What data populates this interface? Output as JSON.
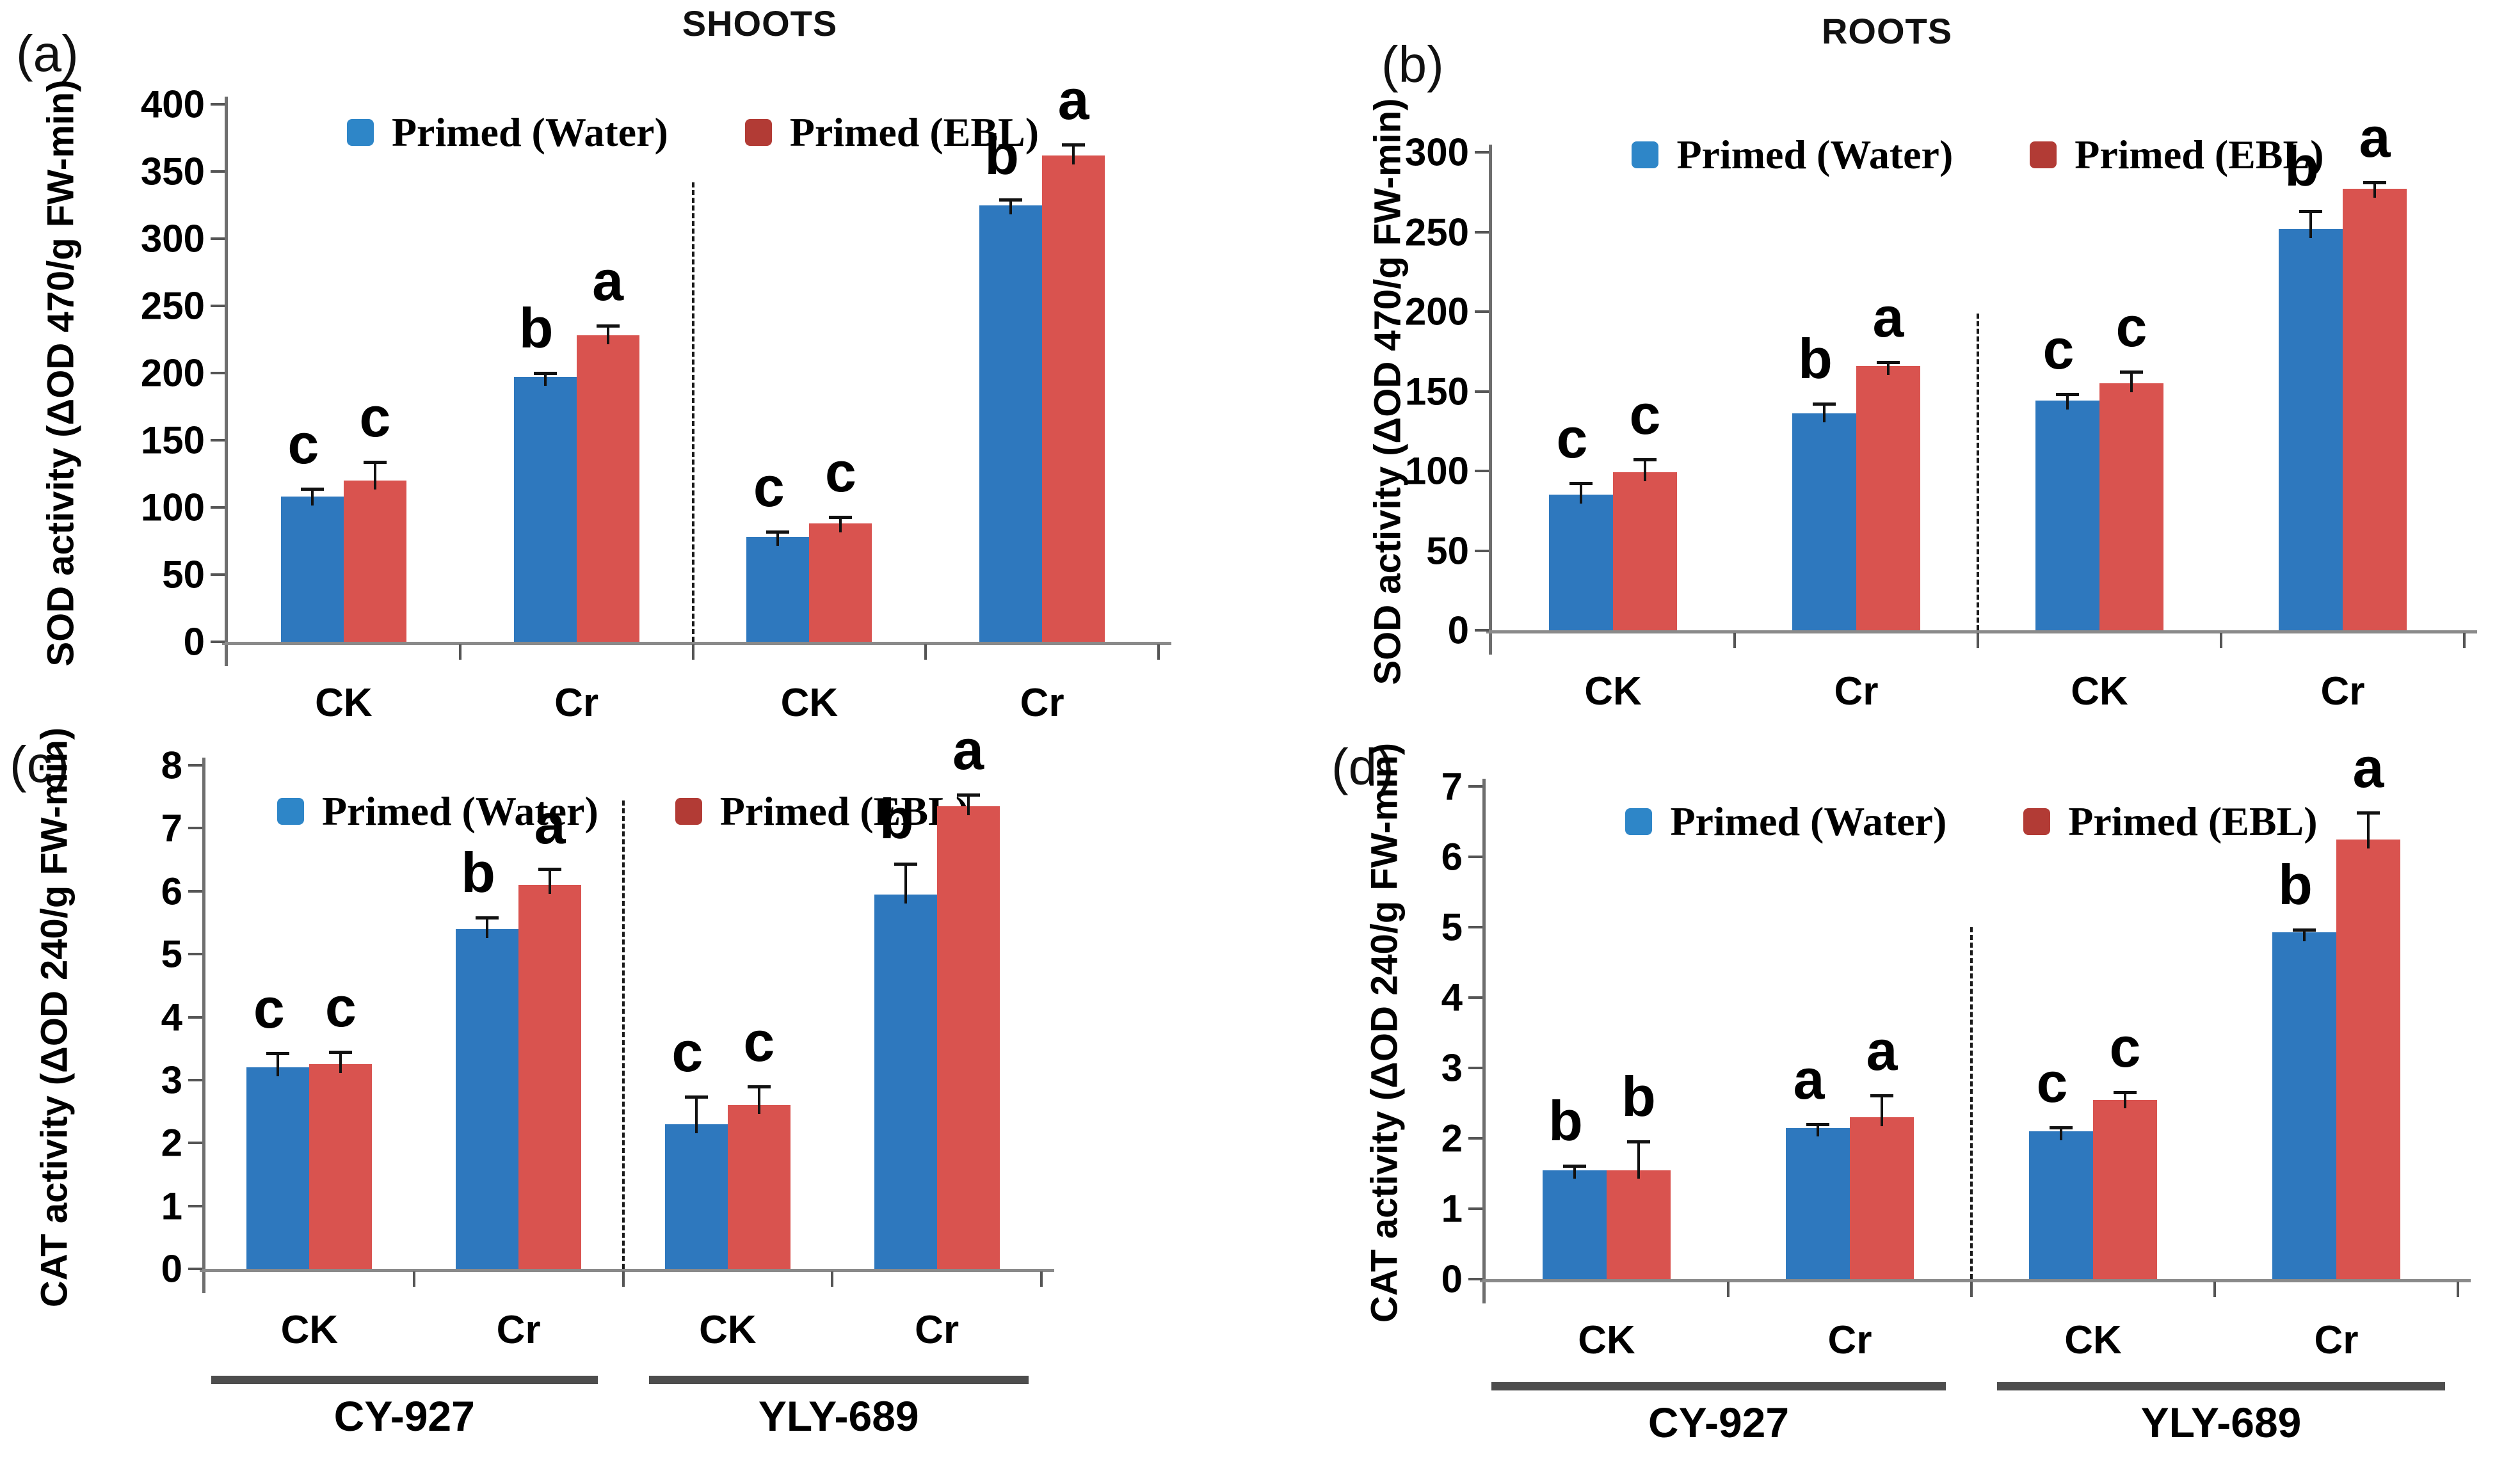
{
  "legend": {
    "water_label": "Primed (Water)",
    "ebl_label": "Primed (EBL)"
  },
  "colors": {
    "water_bar": "#2E78BE",
    "ebl_bar": "#D9534F",
    "water_swatch": "#2E86C8",
    "ebl_swatch": "#B23B35",
    "axis": "#6e6e6e",
    "cultivar_bar": "#4d4d4d"
  },
  "chart_data": [
    {
      "id": "a",
      "panel_letter": "(a)",
      "column_title": "SHOOTS",
      "type": "bar",
      "ylabel": "SOD activity (ΔOD 470/g FW-min)",
      "ylim": [
        0,
        400
      ],
      "ystep": 50,
      "grid": false,
      "legend_position": "top-center",
      "categories": [
        "CK",
        "Cr",
        "CK",
        "Cr"
      ],
      "cultivars": [
        "CY-927",
        "YLY-689"
      ],
      "show_cultivar_labels": false,
      "series": [
        {
          "name": "Primed (Water)",
          "values": [
            108,
            197,
            78,
            325
          ],
          "errors": [
            7,
            4,
            5,
            5
          ],
          "letters": [
            "c",
            "b",
            "c",
            "b"
          ]
        },
        {
          "name": "Primed (EBL)",
          "values": [
            120,
            228,
            88,
            362
          ],
          "errors": [
            15,
            8,
            6,
            9
          ],
          "letters": [
            "c",
            "a",
            "c",
            "a"
          ]
        }
      ]
    },
    {
      "id": "b",
      "panel_letter": "(b)",
      "column_title": "ROOTS",
      "type": "bar",
      "ylabel": "SOD activity (ΔOD 470/g FW-min)",
      "ylim": [
        0,
        300
      ],
      "ystep": 50,
      "grid": false,
      "legend_position": "top-center",
      "categories": [
        "CK",
        "Cr",
        "CK",
        "Cr"
      ],
      "cultivars": [
        "CY-927",
        "YLY-689"
      ],
      "show_cultivar_labels": false,
      "series": [
        {
          "name": "Primed (Water)",
          "values": [
            85,
            136,
            144,
            252
          ],
          "errors": [
            8,
            7,
            5,
            12
          ],
          "letters": [
            "c",
            "b",
            "c",
            "b"
          ]
        },
        {
          "name": "Primed (EBL)",
          "values": [
            99,
            166,
            155,
            277
          ],
          "errors": [
            9,
            3,
            8,
            5
          ],
          "letters": [
            "c",
            "a",
            "c",
            "a"
          ]
        }
      ]
    },
    {
      "id": "c",
      "panel_letter": "(c)",
      "column_title": "",
      "type": "bar",
      "ylabel": "CAT activity (ΔOD 240/g FW-min)",
      "ylim": [
        0,
        8
      ],
      "ystep": 1,
      "grid": false,
      "legend_position": "top-center",
      "categories": [
        "CK",
        "Cr",
        "CK",
        "Cr"
      ],
      "cultivars": [
        "CY-927",
        "YLY-689"
      ],
      "show_cultivar_labels": true,
      "series": [
        {
          "name": "Primed (Water)",
          "values": [
            3.2,
            5.4,
            2.3,
            5.95
          ],
          "errors": [
            0.25,
            0.2,
            0.45,
            0.5
          ],
          "letters": [
            "c",
            "b",
            "c",
            "b"
          ]
        },
        {
          "name": "Primed (EBL)",
          "values": [
            3.25,
            6.1,
            2.6,
            7.35
          ],
          "errors": [
            0.22,
            0.27,
            0.32,
            0.2
          ],
          "letters": [
            "c",
            "a",
            "c",
            "a"
          ]
        }
      ]
    },
    {
      "id": "d",
      "panel_letter": "(d)",
      "column_title": "",
      "type": "bar",
      "ylabel": "CAT activity (ΔOD 240/g FW-min)",
      "ylim": [
        0,
        7
      ],
      "ystep": 1,
      "grid": false,
      "legend_position": "top-center",
      "categories": [
        "CK",
        "Cr",
        "CK",
        "Cr"
      ],
      "cultivars": [
        "CY-927",
        "YLY-689"
      ],
      "show_cultivar_labels": true,
      "series": [
        {
          "name": "Primed (Water)",
          "values": [
            1.55,
            2.15,
            2.1,
            4.93
          ],
          "errors": [
            0.08,
            0.07,
            0.07,
            0.05
          ],
          "letters": [
            "b",
            "a",
            "c",
            "b"
          ]
        },
        {
          "name": "Primed (EBL)",
          "values": [
            1.55,
            2.3,
            2.55,
            6.25
          ],
          "errors": [
            0.42,
            0.33,
            0.12,
            0.4
          ],
          "letters": [
            "b",
            "a",
            "c",
            "a"
          ]
        }
      ]
    }
  ]
}
